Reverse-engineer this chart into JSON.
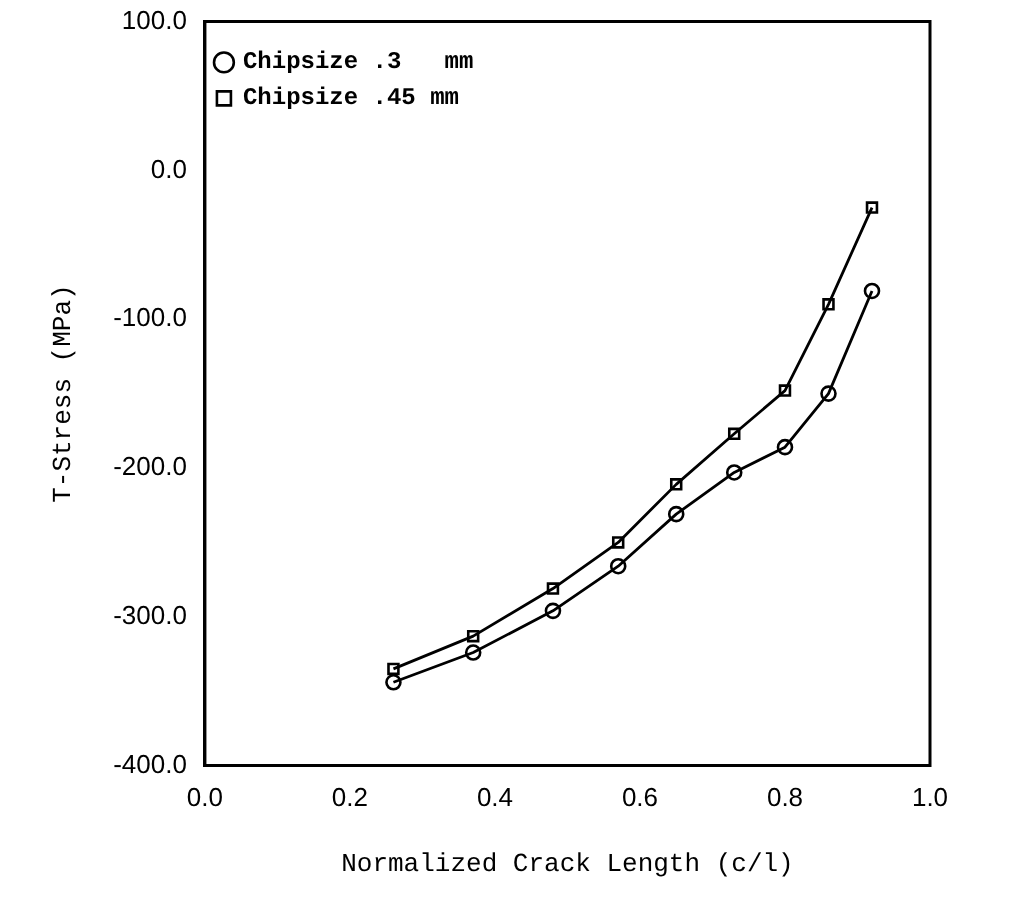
{
  "chart_data": {
    "type": "line",
    "xlabel": "Normalized Crack Length (c/l)",
    "ylabel": "T-Stress (MPa)",
    "xlim": [
      0,
      1
    ],
    "xticks": [
      {
        "value": 0,
        "label": "0.0"
      },
      {
        "value": 0.2,
        "label": "0.2"
      },
      {
        "value": 0.4,
        "label": "0.4"
      },
      {
        "value": 0.6,
        "label": "0.6"
      },
      {
        "value": 0.8,
        "label": "0.8"
      },
      {
        "value": 1,
        "label": "1.0"
      }
    ],
    "ylim": [
      -400,
      100
    ],
    "yticks": [
      {
        "value": -400,
        "label": "-400.0"
      },
      {
        "value": -300,
        "label": "-300.0"
      },
      {
        "value": -200,
        "label": "-200.0"
      },
      {
        "value": -100,
        "label": "-100.0"
      },
      {
        "value": 0,
        "label": "0.0"
      },
      {
        "value": 100,
        "label": "100.0"
      }
    ],
    "x": [
      0.26,
      0.37,
      0.48,
      0.57,
      0.65,
      0.73,
      0.8,
      0.86,
      0.92
    ],
    "series": [
      {
        "name": "Chipsize .3   mm",
        "color": "#000000",
        "marker": "circle",
        "values": [
          -344,
          -324,
          -296,
          -266,
          -231,
          -203,
          -186,
          -150,
          -81
        ]
      },
      {
        "name": "Chipsize .45 mm",
        "color": "#000000",
        "marker": "square",
        "values": [
          -335,
          -313,
          -281,
          -250,
          -211,
          -177,
          -148,
          -90,
          -25
        ]
      }
    ],
    "grid": false,
    "legend": "top left",
    "line_style": "solid"
  }
}
